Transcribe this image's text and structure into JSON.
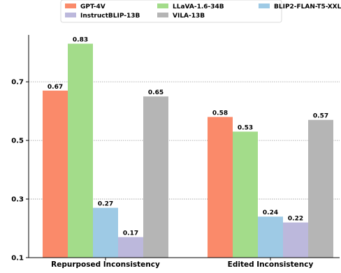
{
  "chart_data": {
    "type": "bar",
    "categories": [
      "Repurposed Inconsistency",
      "Edited Inconsistency"
    ],
    "series": [
      {
        "name": "GPT-4V",
        "color": "#fa8a6a",
        "values": [
          0.67,
          0.58
        ]
      },
      {
        "name": "LLaVA-1.6-34B",
        "color": "#a3dc8a",
        "values": [
          0.83,
          0.53
        ]
      },
      {
        "name": "BLIP2-FLAN-T5-XXL",
        "color": "#9ecae5",
        "values": [
          0.27,
          0.24
        ]
      },
      {
        "name": "InstructBLIP-13B",
        "color": "#bcb8dc",
        "values": [
          0.17,
          0.22
        ]
      },
      {
        "name": "VILA-13B",
        "color": "#b5b5b5",
        "values": [
          0.65,
          0.57
        ]
      }
    ],
    "value_labels": [
      [
        "0.67",
        "0.58"
      ],
      [
        "0.83",
        "0.53"
      ],
      [
        "0.27",
        "0.24"
      ],
      [
        "0.17",
        "0.22"
      ],
      [
        "0.65",
        "0.57"
      ]
    ],
    "yticks": [
      0.1,
      0.3,
      0.5,
      0.7
    ],
    "ytick_labels": [
      "0.1",
      "0.3",
      "0.5",
      "0.7"
    ],
    "ylim": [
      0.1,
      0.86
    ],
    "grid": "horizontal dotted",
    "legend_position": "top",
    "title": "",
    "xlabel": "",
    "ylabel": ""
  }
}
